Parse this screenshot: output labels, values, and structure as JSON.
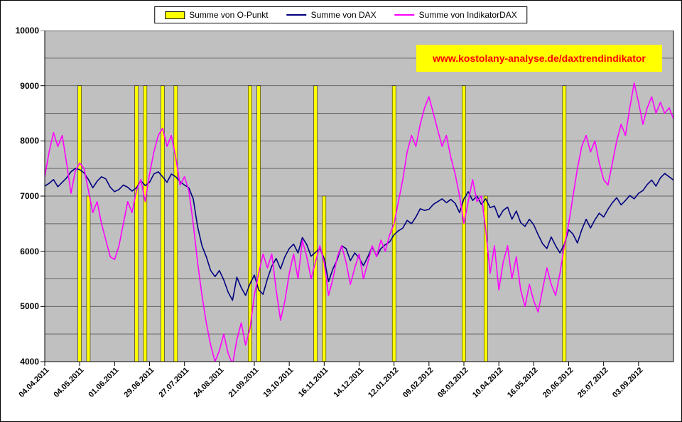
{
  "chart_data": {
    "type": "mixed",
    "title": "",
    "annotation": "www.kostolany-analyse.de/daxtrendindikator",
    "legend_position": "top",
    "grid": true,
    "gridline_step": 500,
    "ylim": [
      4000,
      10000
    ],
    "y_ticks": [
      10000,
      9000,
      8000,
      7000,
      6000,
      5000,
      4000
    ],
    "y_tick_labels": [
      "10000",
      "9000",
      "8000",
      "7000",
      "6000",
      "5000",
      "4000"
    ],
    "points_per_segment": 8,
    "x_tick_labels": [
      "04.04.2011",
      "04.05.2011",
      "01.06.2011",
      "29.06.2011",
      "27.07.2011",
      "24.08.2011",
      "21.09.2011",
      "19.10.2011",
      "16.11.2011",
      "14.12.2011",
      "12.01.2012",
      "09.02.2012",
      "08.03.2012",
      "10.04.2012",
      "16.05.2012",
      "20.06.2012",
      "25.07.2012",
      "03.09.2012"
    ],
    "colors": {
      "o_punkt": "#FFFF00",
      "dax": "#000080",
      "indikator_dax": "#FF00FF",
      "plot_bg": "#C0C0C0",
      "gridline": "#666666",
      "axis": "#000000",
      "annotation_bg": "#FFFF00",
      "annotation_text": "#FF0000"
    },
    "series": [
      {
        "name": "Summe von O-Punkt",
        "type": "bar",
        "color": "#FFFF00",
        "bars": [
          {
            "index": 8,
            "value": 9000
          },
          {
            "index": 10,
            "value": 7000
          },
          {
            "index": 21,
            "value": 9000
          },
          {
            "index": 23,
            "value": 9000
          },
          {
            "index": 27,
            "value": 9000
          },
          {
            "index": 30,
            "value": 9000
          },
          {
            "index": 47,
            "value": 9000
          },
          {
            "index": 49,
            "value": 9000
          },
          {
            "index": 62,
            "value": 9000
          },
          {
            "index": 64,
            "value": 7000
          },
          {
            "index": 80,
            "value": 9000
          },
          {
            "index": 96,
            "value": 9000
          },
          {
            "index": 101,
            "value": 7000
          },
          {
            "index": 119,
            "value": 9000
          }
        ]
      },
      {
        "name": "Summe von DAX",
        "type": "line",
        "color": "#000080",
        "values": [
          7180,
          7230,
          7300,
          7170,
          7250,
          7330,
          7440,
          7500,
          7480,
          7420,
          7300,
          7150,
          7270,
          7350,
          7310,
          7160,
          7080,
          7120,
          7200,
          7160,
          7090,
          7150,
          7280,
          7190,
          7250,
          7400,
          7440,
          7350,
          7250,
          7400,
          7350,
          7260,
          7200,
          7150,
          6950,
          6450,
          6100,
          5900,
          5650,
          5540,
          5650,
          5480,
          5260,
          5110,
          5530,
          5340,
          5200,
          5410,
          5570,
          5300,
          5220,
          5500,
          5730,
          5870,
          5680,
          5900,
          6050,
          6130,
          5970,
          6250,
          6120,
          5910,
          5980,
          6050,
          5870,
          5450,
          5680,
          5850,
          6100,
          6050,
          5830,
          5970,
          5880,
          5740,
          5900,
          6080,
          5910,
          6050,
          6120,
          6170,
          6300,
          6370,
          6420,
          6560,
          6500,
          6620,
          6770,
          6740,
          6760,
          6850,
          6900,
          6950,
          6880,
          6940,
          6870,
          6700,
          6950,
          7080,
          6920,
          7000,
          6850,
          6950,
          6790,
          6820,
          6610,
          6740,
          6800,
          6580,
          6730,
          6520,
          6450,
          6580,
          6480,
          6300,
          6140,
          6050,
          6260,
          6100,
          5970,
          6130,
          6390,
          6310,
          6150,
          6390,
          6580,
          6420,
          6570,
          6690,
          6620,
          6760,
          6880,
          6970,
          6840,
          6920,
          7010,
          6950,
          7050,
          7100,
          7210,
          7290,
          7180,
          7330,
          7410,
          7350,
          7290
        ]
      },
      {
        "name": "Summe von IndikatorDAX",
        "type": "line",
        "color": "#FF00FF",
        "values": [
          7350,
          7800,
          8150,
          7900,
          8100,
          7600,
          7050,
          7450,
          7600,
          7500,
          7100,
          6700,
          6900,
          6500,
          6200,
          5900,
          5850,
          6100,
          6500,
          6900,
          6700,
          7100,
          7300,
          6900,
          7400,
          7800,
          8100,
          8230,
          7900,
          8100,
          7700,
          7200,
          7350,
          7100,
          6500,
          5800,
          5200,
          4700,
          4300,
          4000,
          4200,
          4500,
          4150,
          3950,
          4400,
          4700,
          4300,
          4600,
          5200,
          5600,
          5950,
          5700,
          5950,
          5300,
          4750,
          5100,
          5600,
          5950,
          5500,
          6200,
          5900,
          5500,
          5800,
          6100,
          5800,
          5200,
          5500,
          5900,
          6100,
          5800,
          5400,
          5700,
          5950,
          5500,
          5800,
          6100,
          5900,
          6200,
          6000,
          6300,
          6500,
          6900,
          7300,
          7800,
          8100,
          7900,
          8300,
          8600,
          8800,
          8500,
          8200,
          7900,
          8100,
          7700,
          7400,
          7000,
          6500,
          6900,
          7300,
          6900,
          7000,
          6400,
          5600,
          6100,
          5300,
          5800,
          6100,
          5500,
          5900,
          5300,
          5000,
          5400,
          5100,
          4900,
          5300,
          5700,
          5400,
          5200,
          5600,
          6100,
          6500,
          7000,
          7500,
          7900,
          8100,
          7800,
          8000,
          7600,
          7300,
          7200,
          7600,
          8000,
          8300,
          8100,
          8600,
          9050,
          8700,
          8300,
          8600,
          8800,
          8500,
          8700,
          8500,
          8600,
          8400
        ]
      }
    ]
  }
}
